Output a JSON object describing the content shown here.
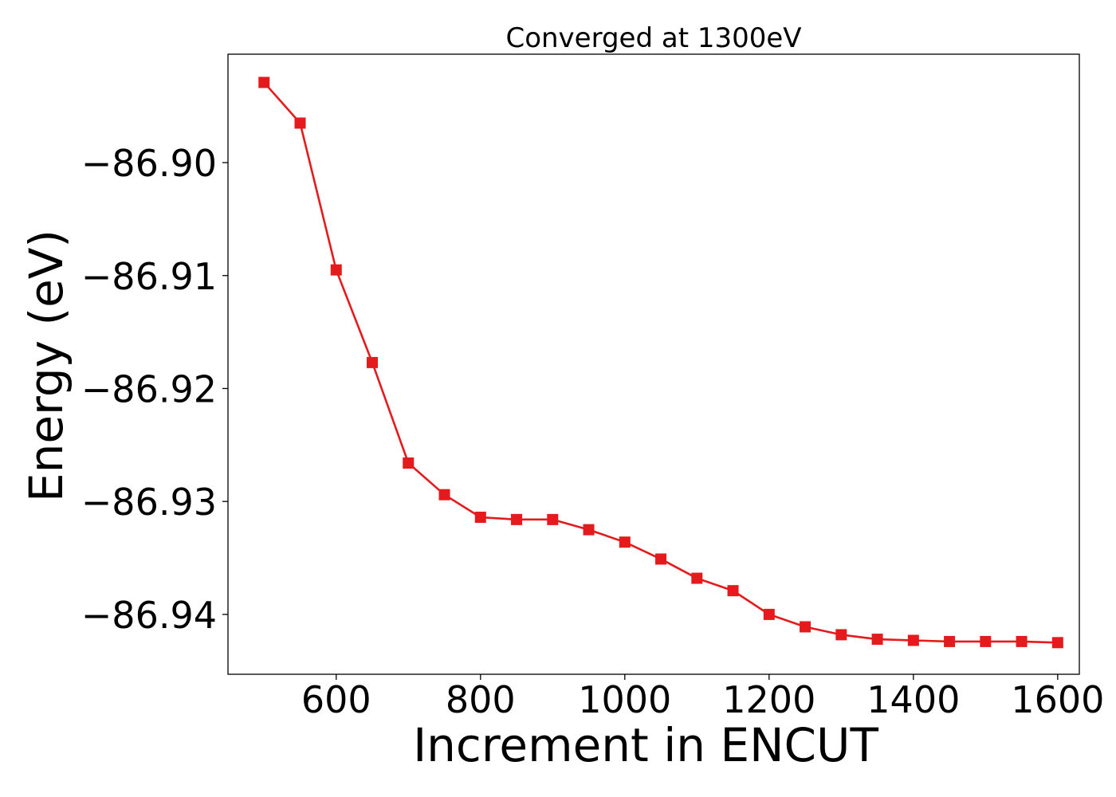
{
  "chart_data": {
    "type": "line",
    "title": "Converged at 1300eV",
    "xlabel": "Increment in ENCUT",
    "ylabel": "Energy (eV)",
    "xlim": [
      450,
      1630
    ],
    "ylim": [
      -86.9453,
      -86.8904
    ],
    "xticks": [
      600,
      800,
      1000,
      1200,
      1400,
      1600
    ],
    "xtick_labels": [
      "600",
      "800",
      "1000",
      "1200",
      "1400",
      "1600"
    ],
    "yticks": [
      -86.9,
      -86.91,
      -86.92,
      -86.93,
      -86.94
    ],
    "ytick_labels": [
      "−86.90",
      "−86.91",
      "−86.92",
      "−86.93",
      "−86.94"
    ],
    "grid": false,
    "legend": "none",
    "series": [
      {
        "color": "#e41a1c",
        "marker": "square",
        "x": [
          500,
          550,
          600,
          650,
          700,
          750,
          800,
          850,
          900,
          950,
          1000,
          1050,
          1100,
          1150,
          1200,
          1250,
          1300,
          1350,
          1400,
          1450,
          1500,
          1550,
          1600
        ],
        "y": [
          -86.8929,
          -86.8965,
          -86.9095,
          -86.9177,
          -86.9266,
          -86.9294,
          -86.9314,
          -86.9316,
          -86.9316,
          -86.9325,
          -86.9336,
          -86.9351,
          -86.9368,
          -86.9379,
          -86.94,
          -86.9411,
          -86.9418,
          -86.9422,
          -86.9423,
          -86.9424,
          -86.9424,
          -86.9424,
          -86.9425
        ]
      }
    ]
  }
}
